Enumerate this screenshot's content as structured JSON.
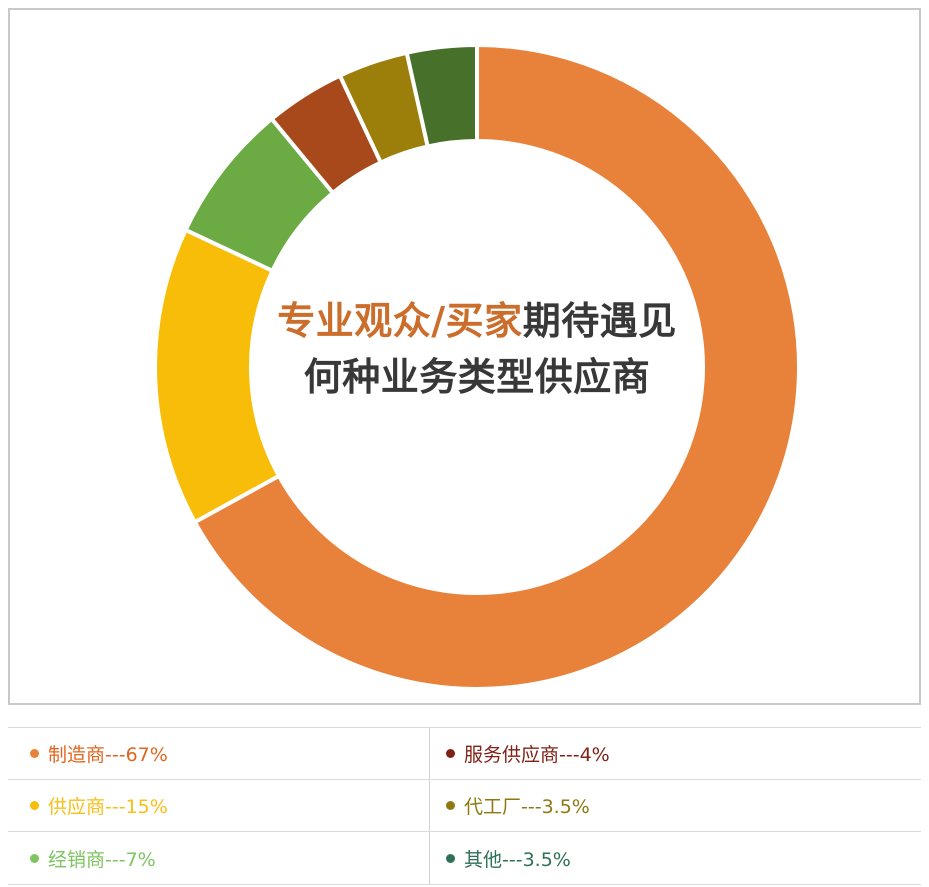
{
  "chart_data": {
    "type": "donut",
    "title": {
      "line1_colored": "专业观众/买家",
      "line1_rest": "期待遇见",
      "line2": "何种业务类型供应商",
      "colored_hex": "#cb6d2b",
      "text_hex": "#383838"
    },
    "start_angle_deg": 0,
    "direction": "clockwise",
    "total": 100,
    "legend_position": "bottom-table",
    "segments": [
      {
        "id": "manufacturer",
        "label": "制造商",
        "value": 67,
        "display": "67%",
        "legend_label": "制造商---67%",
        "color": "#e8823b",
        "text_color": "#e0661f"
      },
      {
        "id": "supplier",
        "label": "供应商",
        "value": 15,
        "display": "15%",
        "legend_label": "供应商---15%",
        "color": "#f8bd08",
        "text_color": "#fbbe16"
      },
      {
        "id": "distributor",
        "label": "经销商",
        "value": 7,
        "display": "7%",
        "legend_label": "经销商---7%",
        "color": "#6cab43",
        "text_color": "#7ec461"
      },
      {
        "id": "service-provider",
        "label": "服务供应商",
        "value": 4,
        "display": "4%",
        "legend_label": "服务供应商---4%",
        "color": "#a8491b",
        "text_color": "#802115"
      },
      {
        "id": "oem-factory",
        "label": "代工厂",
        "value": 3.5,
        "display": "3.5%",
        "legend_label": "代工厂---3.5%",
        "color": "#9c7f0b",
        "text_color": "#8e7911"
      },
      {
        "id": "other",
        "label": "其他",
        "value": 3.5,
        "display": "3.5%",
        "legend_label": "其他---3.5%",
        "color": "#47702b",
        "text_color": "#2e7154"
      }
    ]
  }
}
